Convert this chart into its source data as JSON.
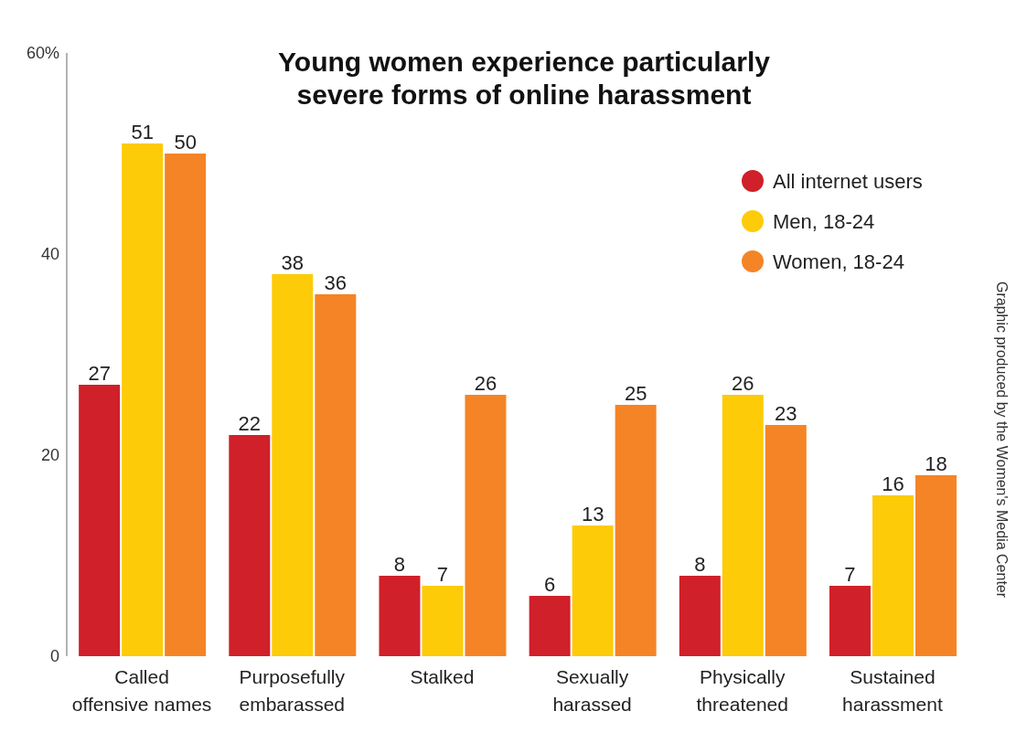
{
  "chart_data": {
    "type": "bar",
    "title": "Young women experience particularly\nsevere forms of online harassment",
    "categories": [
      "Called\noffensive names",
      "Purposefully\nembarassed",
      "Stalked",
      "Sexually\nharassed",
      "Physically\nthreatened",
      "Sustained\nharassment"
    ],
    "series": [
      {
        "name": "All internet users",
        "color": "#d0202a",
        "values": [
          27,
          22,
          8,
          6,
          8,
          7
        ]
      },
      {
        "name": "Men, 18-24",
        "color": "#fdcb08",
        "values": [
          51,
          38,
          7,
          13,
          26,
          16
        ]
      },
      {
        "name": "Women, 18-24",
        "color": "#f58426",
        "values": [
          50,
          36,
          26,
          25,
          23,
          18
        ]
      }
    ],
    "ylim": [
      0,
      60
    ],
    "yticks": [
      0,
      20,
      40,
      {
        "value": 60,
        "label": "60%"
      }
    ],
    "data_labels": true,
    "legend": "top right",
    "marker": "circle",
    "grid": false,
    "annotations": [
      "Graphic produced by the Women's Media Center"
    ]
  }
}
